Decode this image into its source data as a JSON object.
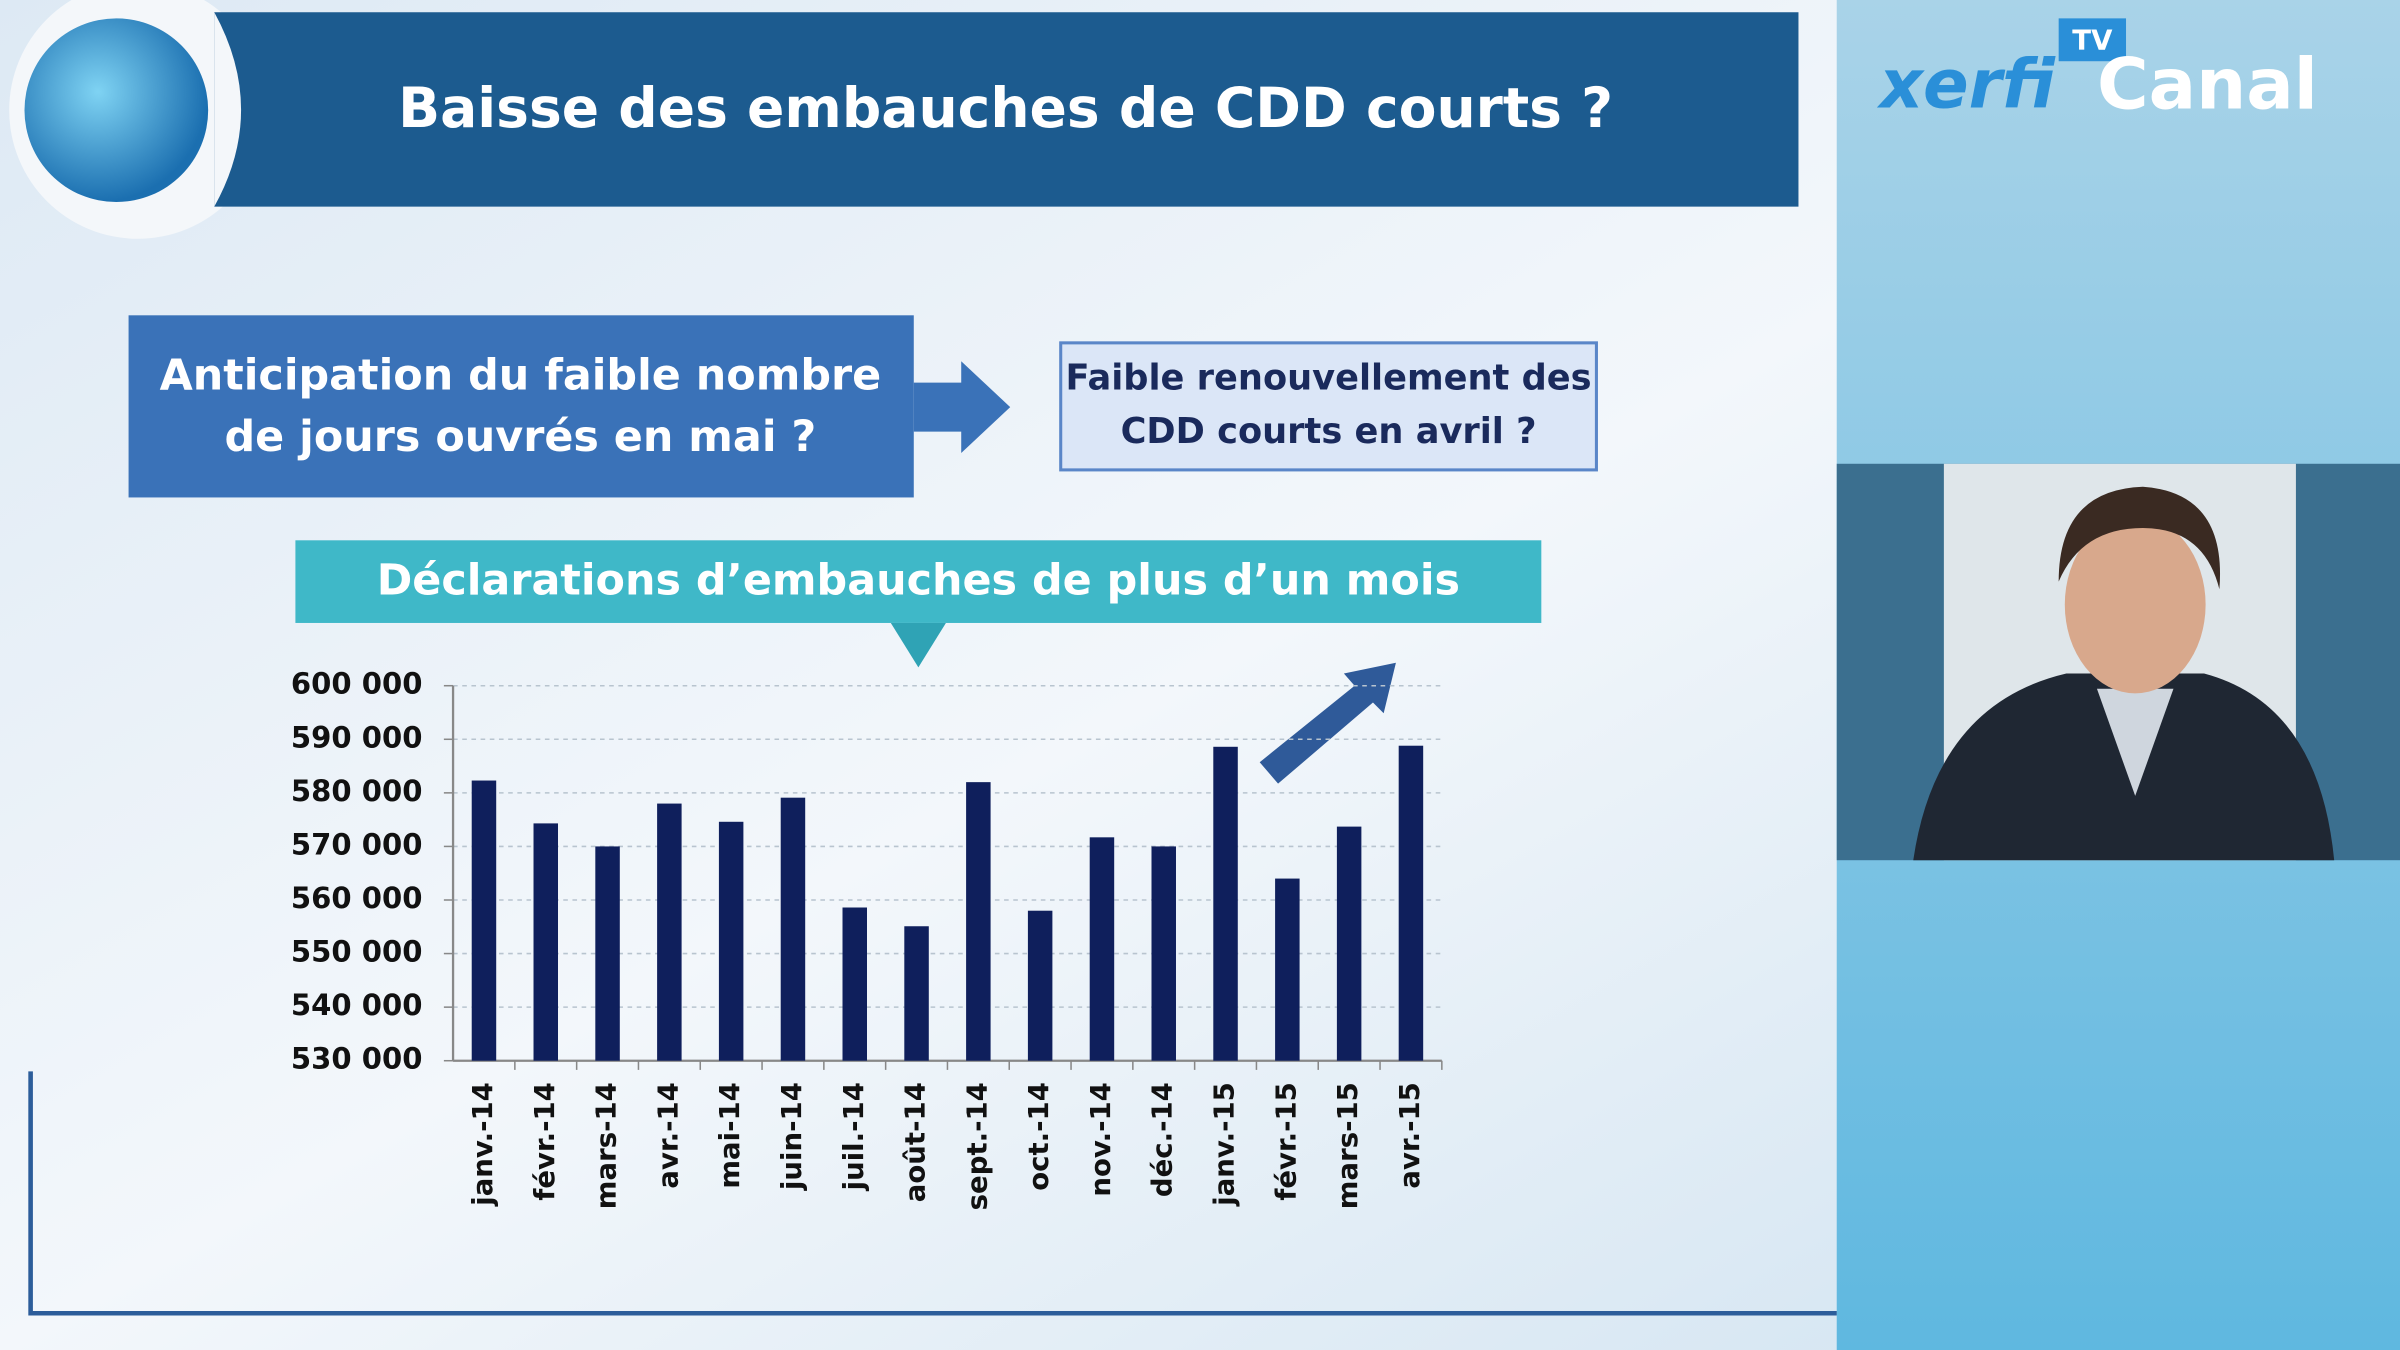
{
  "header": {
    "title": "Baisse des embauches de CDD courts ?"
  },
  "logo": {
    "brand": "xerfi",
    "channel": "Canal",
    "tv": "TV"
  },
  "callouts": [
    {
      "lines": [
        "Anticipation du faible nombre",
        "de jours ouvrés en mai ?"
      ]
    },
    {
      "lines": [
        "Faible renouvellement des",
        "CDD courts en avril ?"
      ]
    }
  ],
  "chart_data": {
    "type": "bar",
    "title": "Déclarations d’embauches de plus d’un mois",
    "categories": [
      "janv.-14",
      "févr.-14",
      "mars-14",
      "avr.-14",
      "mai-14",
      "juin-14",
      "juil.-14",
      "août-14",
      "sept.-14",
      "oct.-14",
      "nov.-14",
      "déc.-14",
      "janv.-15",
      "févr.-15",
      "mars-15",
      "avr.-15"
    ],
    "values": [
      582300,
      574300,
      570000,
      578000,
      574600,
      579100,
      558600,
      555100,
      582000,
      558000,
      571700,
      570000,
      588600,
      564000,
      573700,
      588800
    ],
    "color": "#0f1f5c",
    "ylim": [
      530000,
      600000
    ],
    "yticks": [
      {
        "value": 530000,
        "label": "530 000"
      },
      {
        "value": 540000,
        "label": "540 000"
      },
      {
        "value": 550000,
        "label": "550 000"
      },
      {
        "value": 560000,
        "label": "560 000"
      },
      {
        "value": 570000,
        "label": "570 000"
      },
      {
        "value": 580000,
        "label": "580 000"
      },
      {
        "value": 590000,
        "label": "590 000"
      },
      {
        "value": 600000,
        "label": "600 000"
      }
    ],
    "grid": true
  }
}
